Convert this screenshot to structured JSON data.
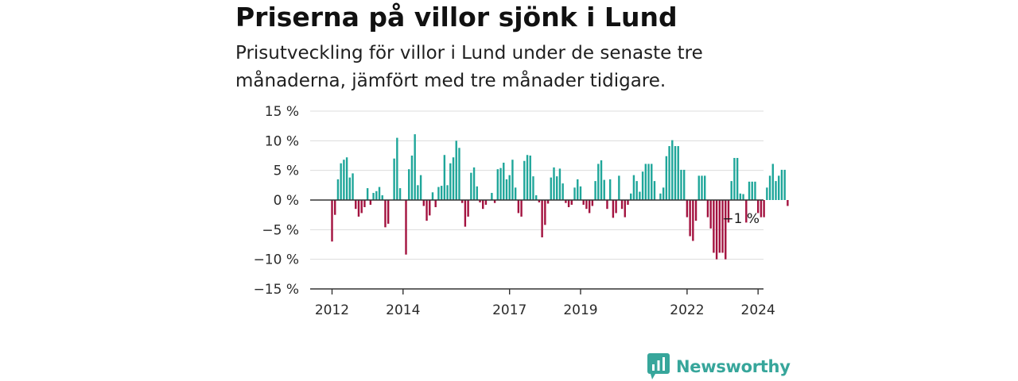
{
  "title": "Priserna på villor sjönk i Lund",
  "subtitle": "Prisutveckling för villor i Lund under de senaste tre månaderna, jämfört med tre månader tidigare.",
  "brand": "Newsworthy",
  "colors": {
    "positive": "#1fa69a",
    "negative": "#a3123f",
    "grid": "#dcdcdc",
    "axis": "#333333",
    "brand": "#37a69b"
  },
  "chart_data": {
    "type": "bar",
    "x_start": "2012-01",
    "frequency": "monthly",
    "values": [
      -7,
      -2.5,
      3.5,
      6.2,
      6.8,
      7.2,
      3.8,
      4.5,
      -1.5,
      -2.8,
      -2.2,
      -1.2,
      2,
      -0.8,
      1.2,
      1.5,
      2.2,
      0.8,
      -4.6,
      -4,
      0,
      7,
      10.5,
      2,
      0,
      -9.2,
      5.2,
      7.5,
      11.1,
      2.5,
      4.2,
      -1,
      -3.5,
      -2.6,
      1.3,
      -1.2,
      2.2,
      2.4,
      7.6,
      2.5,
      6.2,
      7.2,
      10,
      8.8,
      -0.5,
      -4.5,
      -2.8,
      4.6,
      5.5,
      2.3,
      -0.4,
      -1.5,
      -0.8,
      0,
      1.2,
      -0.5,
      5.2,
      5.4,
      6.3,
      3.5,
      4.2,
      6.8,
      2.1,
      -2.2,
      -2.8,
      6.6,
      7.6,
      7.5,
      4,
      0.8,
      -0.4,
      -6.3,
      -4.2,
      -0.6,
      3.8,
      5.5,
      4,
      5.3,
      2.8,
      -0.5,
      -1.2,
      -0.8,
      2.1,
      3.5,
      2.3,
      -0.8,
      -1.5,
      -2.2,
      -1,
      3.2,
      6.1,
      6.7,
      3.4,
      -1.5,
      3.5,
      -3,
      -2.2,
      4.1,
      -1.5,
      -2.9,
      -0.8,
      1.1,
      4.2,
      3.2,
      1.4,
      4.8,
      6.1,
      6.1,
      6.1,
      3.2,
      0,
      1.1,
      2.1,
      7.4,
      9.1,
      10.1,
      9.1,
      9.1,
      5.1,
      5.1,
      -2.9,
      -6.1,
      -6.9,
      -3.5,
      4.1,
      4.1,
      4.1,
      -2.9,
      -4.8,
      -8.9,
      -10,
      -8.9,
      -8.9,
      -10,
      -3.8,
      3.2,
      7.1,
      7.1,
      1.1,
      1,
      -3.8,
      3.1,
      3.1,
      3.1,
      -2.2,
      -2.9,
      -2.9,
      2.1,
      4.1,
      6.1,
      3.2,
      4.1,
      5.1,
      5.1,
      -1
    ],
    "y_ticks": [
      "15 %",
      "10 %",
      "5 %",
      "0 %",
      "−5 %",
      "−10 %",
      "−15 %"
    ],
    "ylim": [
      -15,
      15
    ],
    "x_tick_labels": [
      "2012",
      "2014",
      "2017",
      "2019",
      "2022",
      "2024"
    ],
    "x_tick_years": [
      2012,
      2014,
      2017,
      2019,
      2022,
      2024
    ],
    "last_label": "−1 %"
  }
}
